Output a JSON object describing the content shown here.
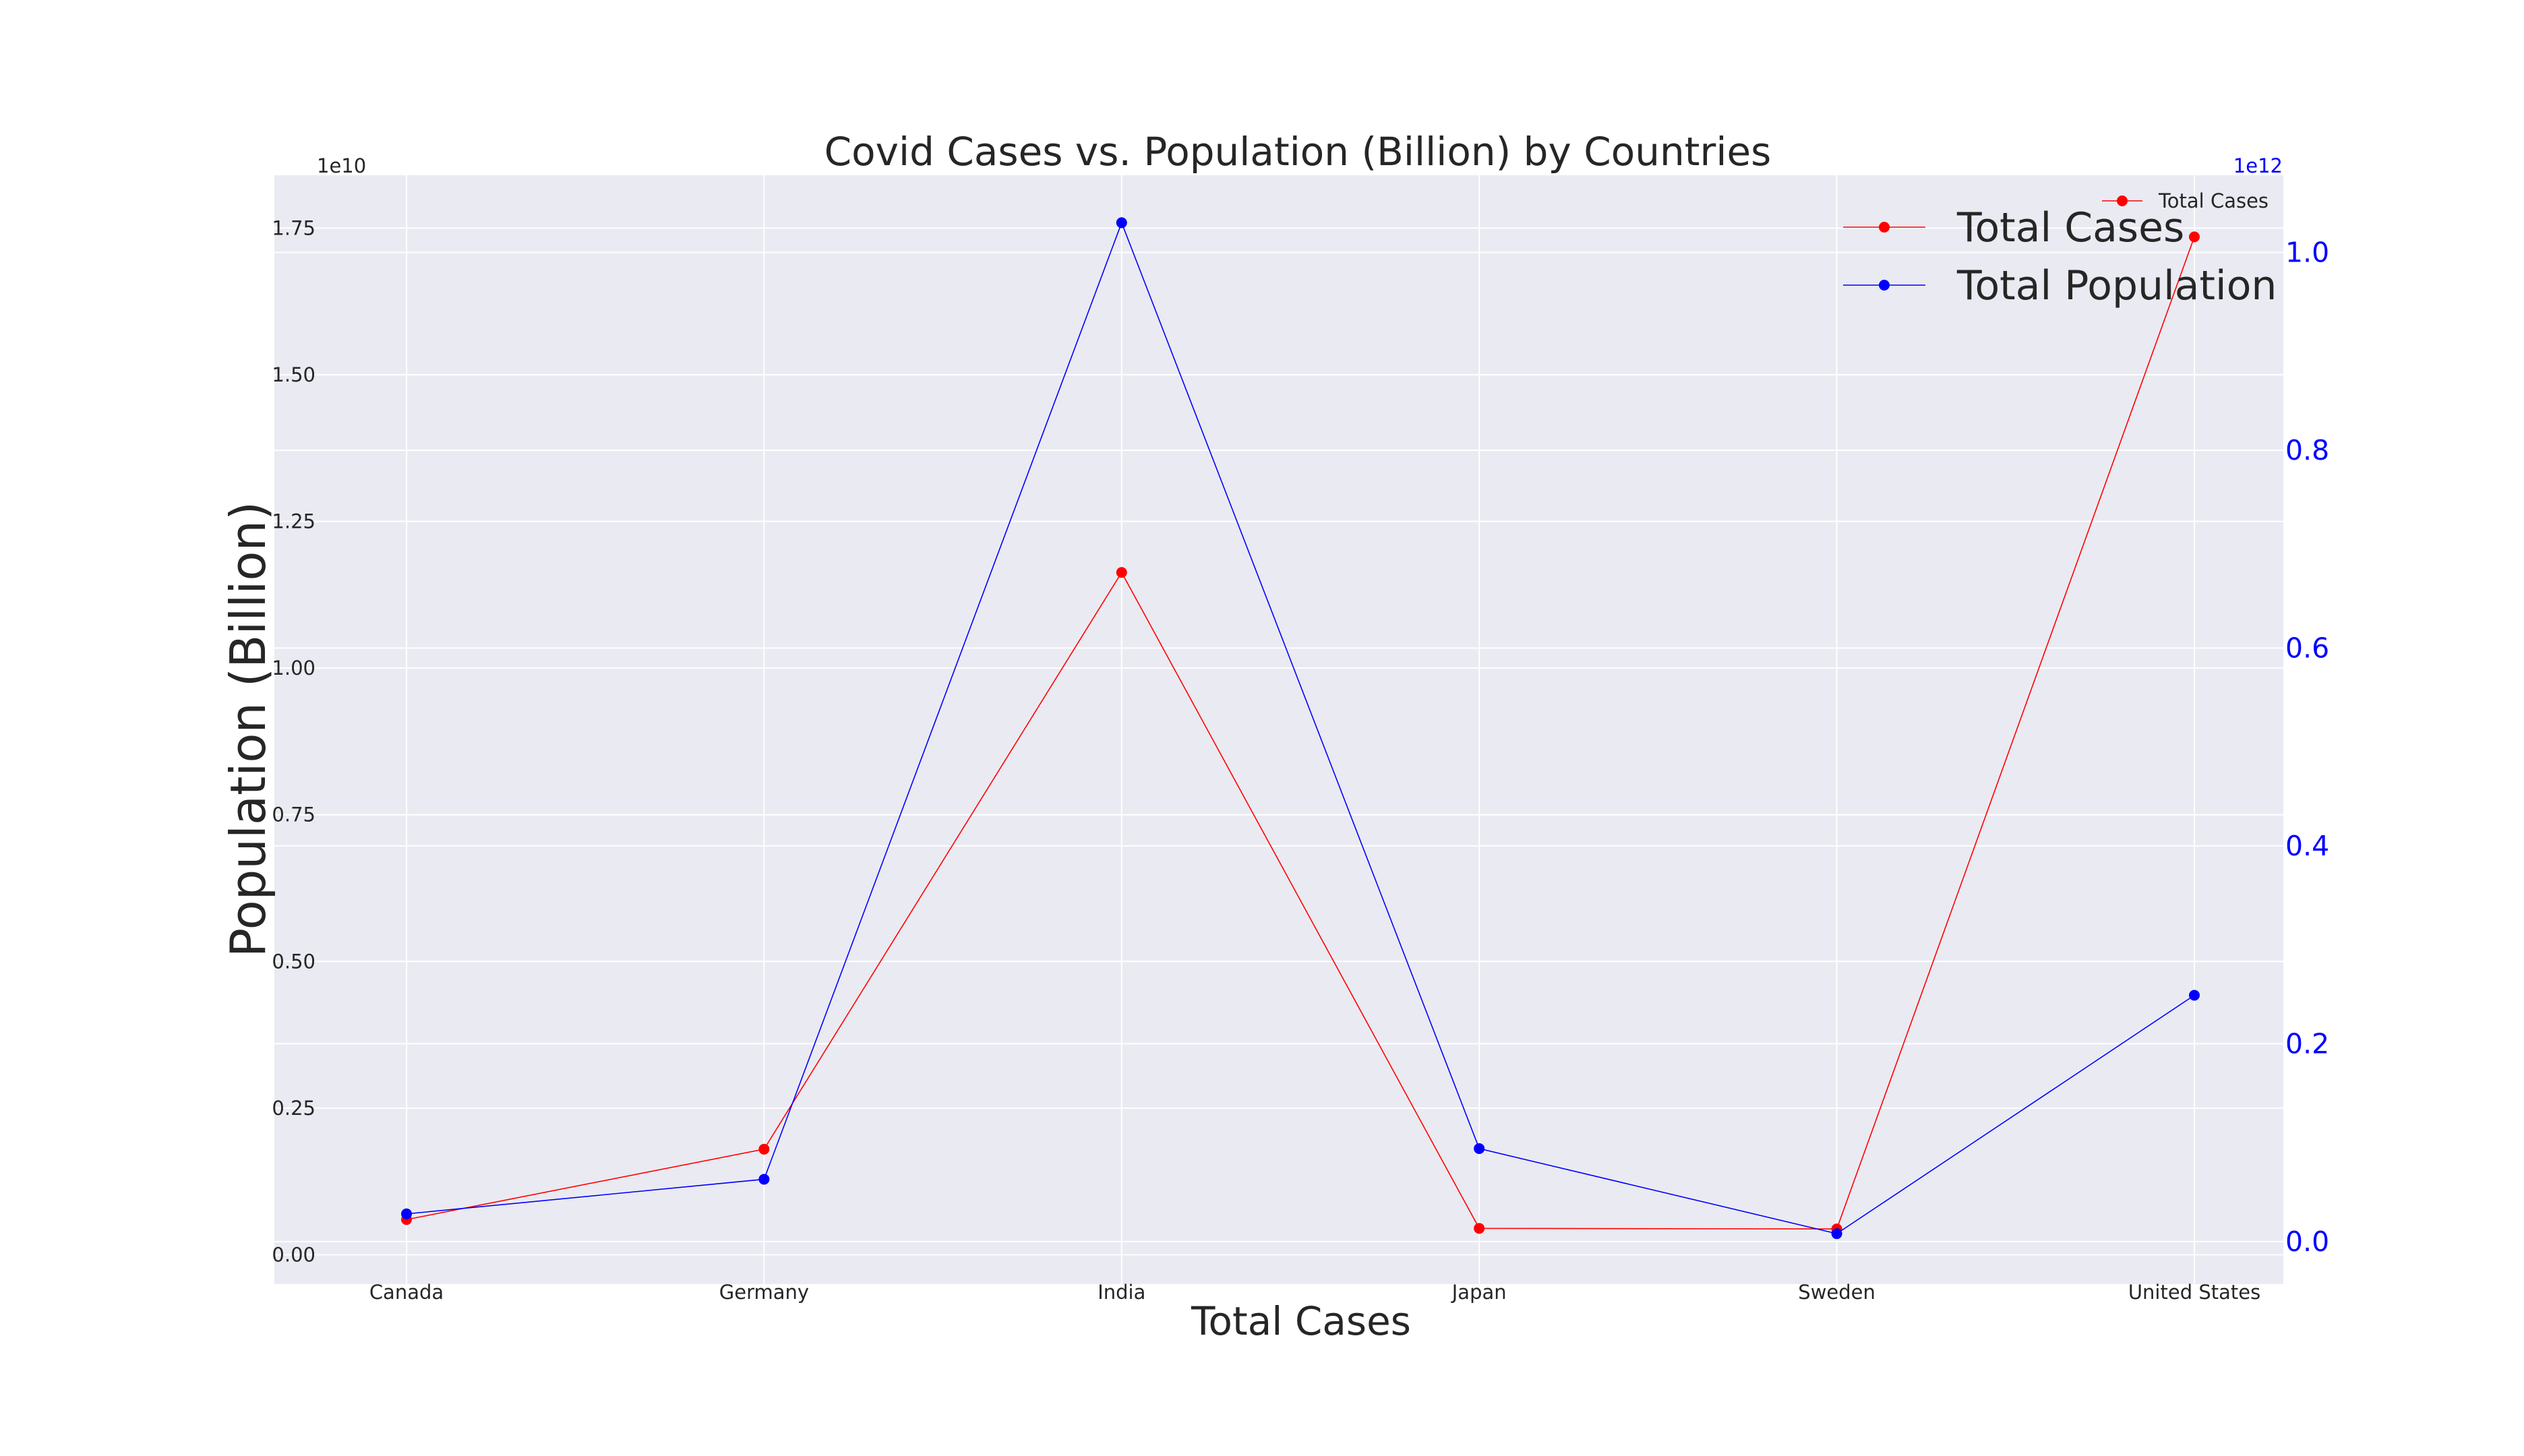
{
  "chart_data": {
    "type": "line",
    "title": "Covid Cases vs. Population (Billion) by Countries",
    "xlabel": "Total Cases",
    "ylabel": "Population (Billion)",
    "categories": [
      "Canada",
      "Germany",
      "India",
      "Japan",
      "Sweden",
      "United States"
    ],
    "series": [
      {
        "name": "Total Cases",
        "axis": "left",
        "color": "#ff0000",
        "values": [
          600000000.0,
          1800000000.0,
          11630000000.0,
          450000000.0,
          440000000.0,
          17350000000.0
        ]
      },
      {
        "name": "Total Population",
        "axis": "right",
        "color": "#0000ff",
        "values": [
          28000000000.0,
          63000000000.0,
          1030000000000.0,
          94000000000.0,
          8000000000.0,
          249000000000.0
        ]
      }
    ],
    "left_axis": {
      "ylim": [
        -0.05,
        1.84
      ],
      "ticks": [
        0.0,
        0.25,
        0.5,
        0.75,
        1.0,
        1.25,
        1.5,
        1.75
      ],
      "tick_labels": [
        "0.00",
        "0.25",
        "0.50",
        "0.75",
        "1.00",
        "1.25",
        "1.50",
        "1.75"
      ],
      "offset_label": "1e10"
    },
    "right_axis": {
      "ylim": [
        -0.043,
        1.078
      ],
      "ticks": [
        0.0,
        0.2,
        0.4,
        0.6,
        0.8,
        1.0
      ],
      "tick_labels": [
        "0.0",
        "0.2",
        "0.4",
        "0.6",
        "0.8",
        "1.0"
      ],
      "offset_label": "1e12",
      "color": "#0000ff"
    },
    "legends": [
      {
        "placement": "upper-right",
        "entries": [
          "Total Cases",
          "Total Population"
        ]
      },
      {
        "placement": "upper-right",
        "entries": [
          "Total Cases"
        ]
      }
    ],
    "grid": true,
    "colors": {
      "plot_background": "#eaeaf2",
      "grid": "#ffffff"
    }
  }
}
